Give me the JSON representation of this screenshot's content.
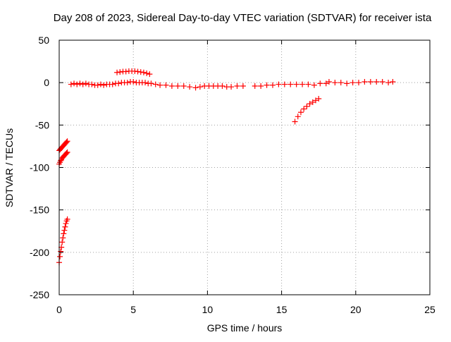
{
  "chart_data": {
    "type": "scatter",
    "title": "Day 208 of 2023, Sidereal Day-to-day VTEC variation (SDTVAR) for receiver ista",
    "xlabel": "GPS time / hours",
    "ylabel": "SDTVAR / TECUs",
    "xlim": [
      0,
      25
    ],
    "ylim": [
      -250,
      50
    ],
    "xticks": [
      0,
      5,
      10,
      15,
      20,
      25
    ],
    "yticks": [
      -250,
      -200,
      -150,
      -100,
      -50,
      0,
      50
    ],
    "grid": true,
    "legend": "none",
    "marker": "plus",
    "color": "#ff0000",
    "series": [
      {
        "x": [
          0.0,
          0.05,
          0.1,
          0.15,
          0.2,
          0.25,
          0.3,
          0.35,
          0.4,
          0.45,
          0.5,
          0.55
        ],
        "y": [
          -80,
          -79,
          -78,
          -77,
          -76,
          -75,
          -74,
          -73,
          -72,
          -71,
          -70,
          -69
        ]
      },
      {
        "x": [
          0.0,
          0.05,
          0.1,
          0.15,
          0.2,
          0.25,
          0.3,
          0.35,
          0.4,
          0.45,
          0.5,
          0.55
        ],
        "y": [
          -96,
          -94,
          -92,
          -91,
          -89,
          -88,
          -87,
          -86,
          -85,
          -84,
          -83,
          -82
        ]
      },
      {
        "x": [
          0.0,
          0.05,
          0.1,
          0.15,
          0.2,
          0.25,
          0.3,
          0.35,
          0.4,
          0.45,
          0.5,
          0.55
        ],
        "y": [
          -212,
          -205,
          -199,
          -194,
          -188,
          -183,
          -178,
          -174,
          -170,
          -166,
          -163,
          -161
        ]
      },
      {
        "x": [
          0.8,
          1.0,
          1.2,
          1.4,
          1.6,
          1.8,
          2.0,
          2.2,
          2.4,
          2.6,
          2.8,
          3.0,
          3.2,
          3.4,
          3.6,
          3.8,
          4.0,
          4.2,
          4.4,
          4.6,
          4.8,
          5.0,
          5.2,
          5.4,
          5.6,
          5.8,
          6.0,
          6.2,
          6.5
        ],
        "y": [
          -2,
          -1,
          -2,
          -1,
          -2,
          -1,
          -2,
          -2,
          -3,
          -3,
          -2,
          -3,
          -2,
          -2,
          -2,
          -1,
          -1,
          0,
          0,
          0,
          1,
          1,
          0,
          0,
          0,
          0,
          -1,
          -1,
          -2
        ]
      },
      {
        "x": [
          3.9,
          4.1,
          4.3,
          4.5,
          4.7,
          4.9,
          5.1,
          5.3,
          5.5,
          5.7,
          5.9,
          6.1
        ],
        "y": [
          12,
          12.5,
          13,
          13,
          13.5,
          13.5,
          13.5,
          13,
          12.5,
          12,
          11,
          10
        ]
      },
      {
        "x": [
          6.8,
          7.2,
          7.6,
          8.0,
          8.4,
          8.8,
          9.2,
          9.5,
          9.8,
          10.1,
          10.4,
          10.7,
          11.0,
          11.3,
          11.6,
          12.0,
          12.4
        ],
        "y": [
          -3,
          -3,
          -4,
          -4,
          -4,
          -5,
          -6,
          -5,
          -4,
          -4,
          -4,
          -4,
          -4,
          -5,
          -5,
          -4,
          -4
        ]
      },
      {
        "x": [
          13.2,
          13.6,
          14.0,
          14.4,
          14.8,
          15.2,
          15.6,
          16.0,
          16.4,
          16.8,
          17.2,
          17.6,
          18.0
        ],
        "y": [
          -4,
          -4,
          -3,
          -3,
          -2,
          -2,
          -2,
          -2,
          -2,
          -2,
          -3,
          -1,
          -1
        ]
      },
      {
        "x": [
          15.9,
          16.1,
          16.3,
          16.5,
          16.7,
          16.9,
          17.1,
          17.3,
          17.5
        ],
        "y": [
          -46,
          -40,
          -35,
          -31,
          -28,
          -25,
          -23,
          -21,
          -19
        ]
      },
      {
        "x": [
          18.2,
          18.6,
          19.0,
          19.4,
          19.8,
          20.2,
          20.6,
          21.0,
          21.4,
          21.8,
          22.2,
          22.5
        ],
        "y": [
          1,
          0,
          0,
          -1,
          0,
          0,
          1,
          1,
          1,
          1,
          0,
          1
        ]
      }
    ]
  }
}
